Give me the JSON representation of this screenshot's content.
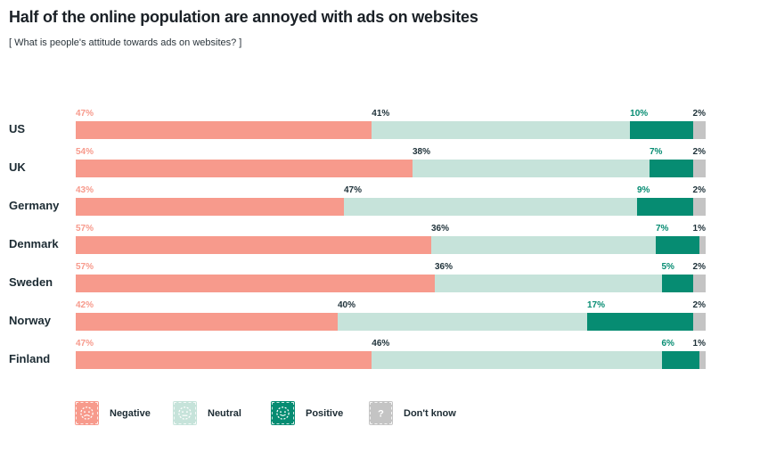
{
  "title": "Half of the online population are annoyed with ads on websites",
  "subtitle": "[ What is people's attitude towards ads on websites? ]",
  "chart_data": {
    "type": "bar",
    "orientation": "horizontal",
    "stacked": true,
    "grid": false,
    "value_suffix": "%",
    "legend_position": "bottom",
    "categories": [
      "US",
      "UK",
      "Germany",
      "Denmark",
      "Sweden",
      "Norway",
      "Finland"
    ],
    "series": [
      {
        "name": "Negative",
        "color": "#F79A8C",
        "label_color": "#F79A8C",
        "values": [
          47,
          54,
          43,
          57,
          57,
          42,
          47
        ]
      },
      {
        "name": "Neutral",
        "color": "#C6E3DA",
        "label_color": "#1E3139",
        "values": [
          41,
          38,
          47,
          36,
          36,
          40,
          46
        ]
      },
      {
        "name": "Positive",
        "color": "#068C72",
        "label_color": "#068C72",
        "values": [
          10,
          7,
          9,
          7,
          5,
          17,
          6
        ]
      },
      {
        "name": "Don't know",
        "color": "#C4C4C4",
        "label_color": "#1E3139",
        "values": [
          2,
          2,
          2,
          1,
          2,
          2,
          1
        ]
      }
    ]
  },
  "legend": {
    "items": [
      {
        "label": "Negative",
        "icon": "sad-face-icon",
        "color": "#F79A8C"
      },
      {
        "label": "Neutral",
        "icon": "neutral-face-icon",
        "color": "#C6E3DA"
      },
      {
        "label": "Positive",
        "icon": "smiley-face-icon",
        "color": "#068C72"
      },
      {
        "label": "Don't know",
        "icon": "question-mark-icon",
        "color": "#C4C4C4"
      }
    ]
  }
}
